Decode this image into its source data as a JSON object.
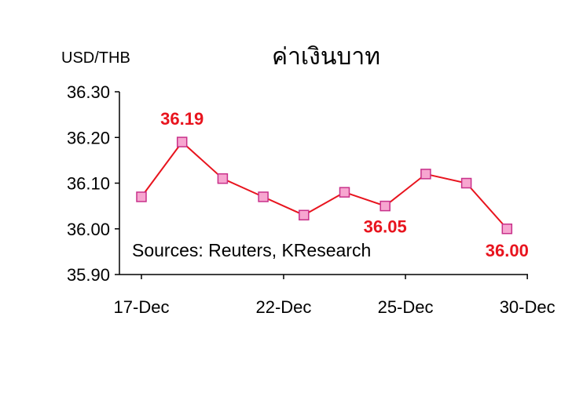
{
  "chart_data": {
    "type": "line",
    "title": "ค่าเงินบาท",
    "ylabel": "USD/THB",
    "xlabel": "",
    "annotation": "Sources: Reuters, KResearch",
    "ylim": [
      35.9,
      36.3
    ],
    "yticks": [
      "36.30",
      "36.20",
      "36.10",
      "36.00",
      "35.90"
    ],
    "yticks_values": [
      36.3,
      36.2,
      36.1,
      36.0,
      35.9
    ],
    "x_tick_labels": [
      {
        "label": "17-Dec",
        "index": 0
      },
      {
        "label": "22-Dec",
        "index": 3.5
      },
      {
        "label": "25-Dec",
        "index": 6.5
      },
      {
        "label": "30-Dec",
        "index": 9.5
      }
    ],
    "series": [
      {
        "values": [
          36.07,
          36.19,
          36.11,
          36.07,
          36.03,
          36.08,
          36.05,
          36.12,
          36.1,
          36.0
        ]
      }
    ],
    "data_labels": [
      {
        "index": 1,
        "text": "36.19"
      },
      {
        "index": 6,
        "text": "36.05"
      },
      {
        "index": 9,
        "text": "36.00"
      }
    ],
    "colors": {
      "line": "#e8141e",
      "marker_fill": "#f7a6d0",
      "marker_stroke": "#c8308a",
      "label": "#e8141e",
      "axis": "#000000"
    },
    "grid": false,
    "legend": "none"
  }
}
